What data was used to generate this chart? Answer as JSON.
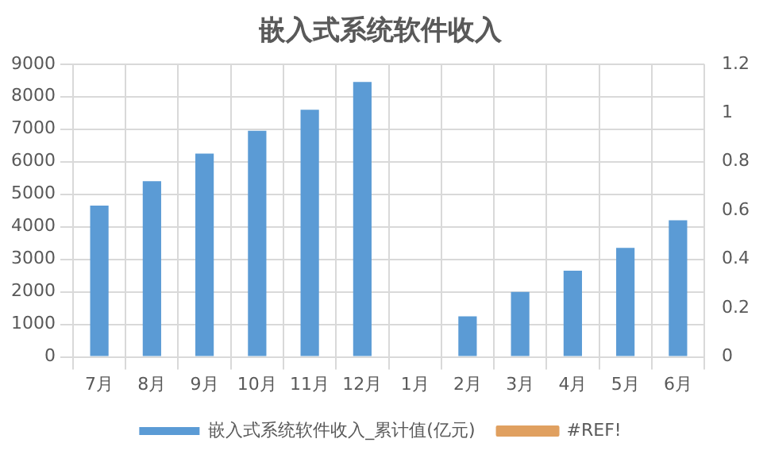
{
  "chart_data": {
    "type": "bar",
    "title": "嵌入式系统软件收入",
    "categories": [
      "7月",
      "8月",
      "9月",
      "10月",
      "11月",
      "12月",
      "1月",
      "2月",
      "3月",
      "4月",
      "5月",
      "6月"
    ],
    "series": [
      {
        "name": "嵌入式系统软件收入_累计值(亿元)",
        "color": "#5b9bd5",
        "values": [
          4650,
          5400,
          6250,
          6950,
          7600,
          8450,
          null,
          1250,
          2000,
          2650,
          3350,
          4200
        ]
      },
      {
        "name": "#REF!",
        "type": "line",
        "axis": "y2",
        "color": "#e0a060",
        "values": [
          null,
          null,
          null,
          null,
          null,
          null,
          null,
          null,
          null,
          null,
          null,
          null
        ]
      }
    ],
    "ylim": [
      0,
      9000
    ],
    "yticks": [
      0,
      1000,
      2000,
      3000,
      4000,
      5000,
      6000,
      7000,
      8000,
      9000
    ],
    "y2lim": [
      0,
      1.2
    ],
    "y2ticks": [
      0,
      0.2,
      0.4,
      0.6,
      0.8,
      1,
      1.2
    ],
    "grid": true,
    "legend": "bottom"
  }
}
